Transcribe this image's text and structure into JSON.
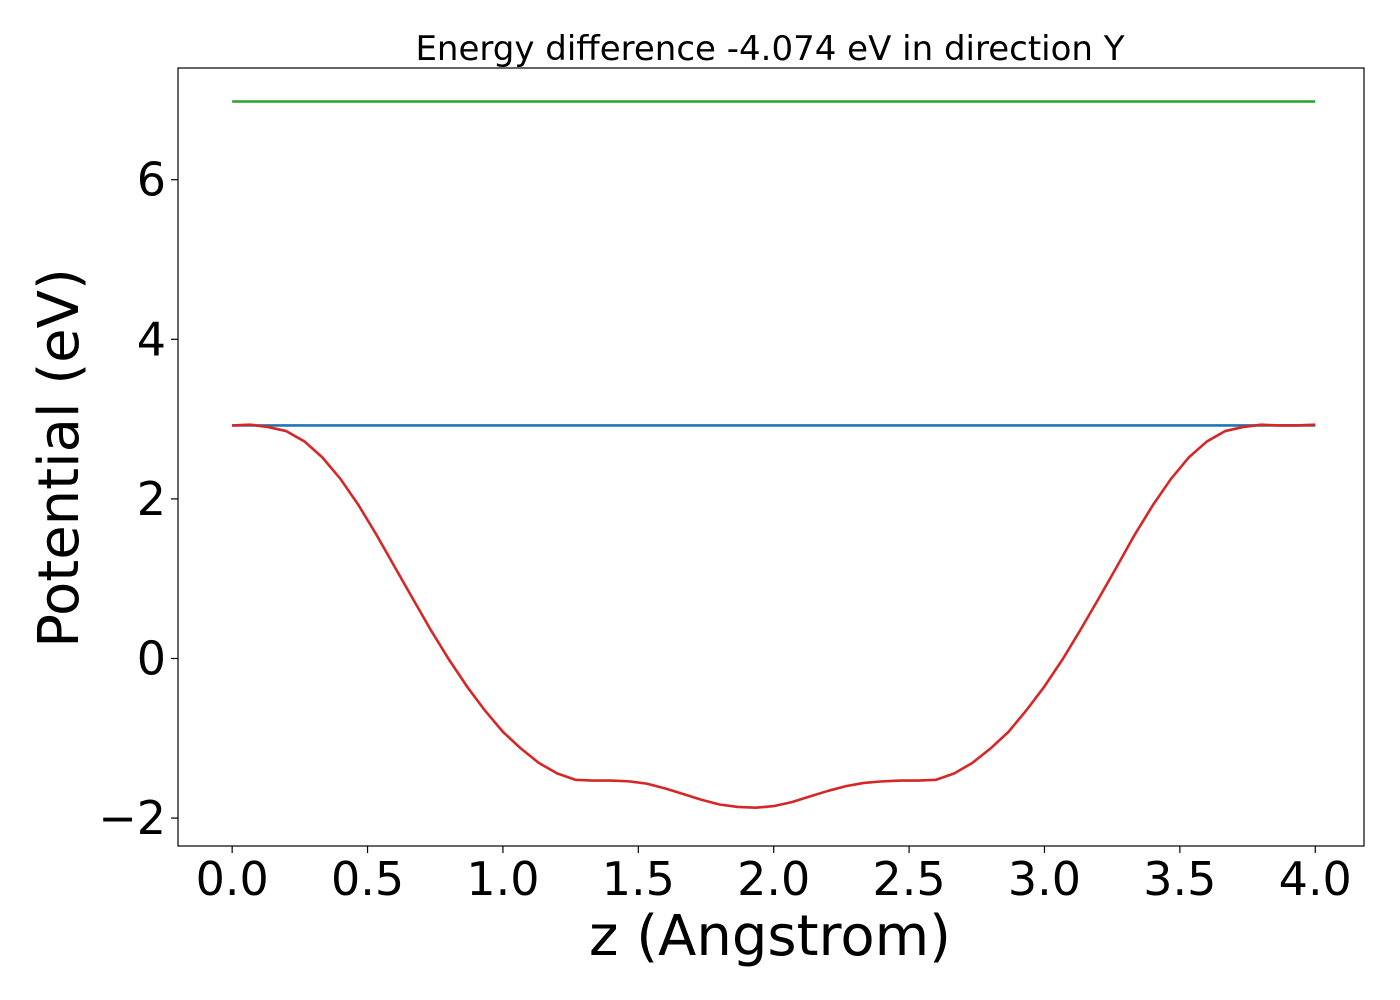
{
  "chart_data": {
    "type": "line",
    "title": "Energy difference -4.074 eV in direction Y",
    "xlabel": "z (Angstrom)",
    "ylabel": "Potential (eV)",
    "xlim": [
      -0.2,
      4.18
    ],
    "ylim": [
      -2.35,
      7.4
    ],
    "xticks": [
      0.0,
      0.5,
      1.0,
      1.5,
      2.0,
      2.5,
      3.0,
      3.5,
      4.0
    ],
    "xtick_labels": [
      "0.0",
      "0.5",
      "1.0",
      "1.5",
      "2.0",
      "2.5",
      "3.0",
      "3.5",
      "4.0"
    ],
    "yticks": [
      -2,
      0,
      2,
      4,
      6
    ],
    "ytick_labels": [
      "−2",
      "0",
      "2",
      "4",
      "6"
    ],
    "grid": false,
    "series": [
      {
        "color": "#2ca02c",
        "x": [
          0.0,
          4.0
        ],
        "y": [
          6.98,
          6.98
        ]
      },
      {
        "color": "#1f77b4",
        "x": [
          0.0,
          4.0
        ],
        "y": [
          2.92,
          2.92
        ]
      },
      {
        "color": "#d62728",
        "x": [
          0.0,
          0.067,
          0.133,
          0.2,
          0.267,
          0.333,
          0.4,
          0.467,
          0.533,
          0.6,
          0.667,
          0.733,
          0.8,
          0.867,
          0.933,
          1.0,
          1.067,
          1.133,
          1.2,
          1.267,
          1.333,
          1.4,
          1.467,
          1.533,
          1.6,
          1.667,
          1.733,
          1.8,
          1.867,
          1.933,
          2.0,
          2.067,
          2.133,
          2.2,
          2.267,
          2.333,
          2.4,
          2.467,
          2.533,
          2.6,
          2.667,
          2.733,
          2.8,
          2.867,
          2.933,
          3.0,
          3.067,
          3.133,
          3.2,
          3.267,
          3.333,
          3.4,
          3.467,
          3.533,
          3.6,
          3.667,
          3.733,
          3.8,
          3.867,
          3.933,
          4.0
        ],
        "y": [
          2.92,
          2.93,
          2.9,
          2.85,
          2.72,
          2.52,
          2.25,
          1.92,
          1.55,
          1.15,
          0.75,
          0.36,
          -0.01,
          -0.35,
          -0.65,
          -0.92,
          -1.13,
          -1.31,
          -1.44,
          -1.52,
          -1.53,
          -1.53,
          -1.54,
          -1.57,
          -1.63,
          -1.7,
          -1.77,
          -1.83,
          -1.86,
          -1.87,
          -1.85,
          -1.8,
          -1.73,
          -1.66,
          -1.6,
          -1.56,
          -1.54,
          -1.53,
          -1.53,
          -1.52,
          -1.44,
          -1.31,
          -1.13,
          -0.92,
          -0.65,
          -0.35,
          -0.01,
          0.36,
          0.75,
          1.15,
          1.55,
          1.92,
          2.25,
          2.52,
          2.72,
          2.85,
          2.9,
          2.93,
          2.92,
          2.92,
          2.93
        ]
      }
    ]
  }
}
